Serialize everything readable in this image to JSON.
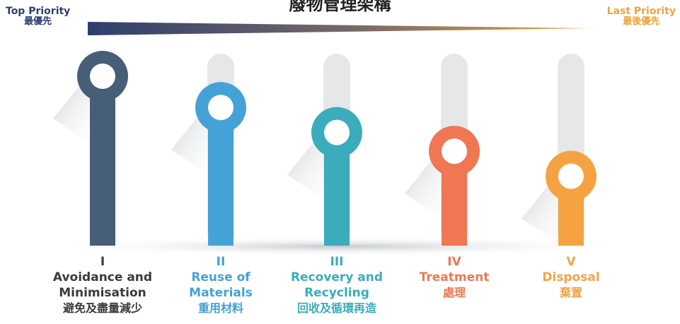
{
  "title": "廢物管理架構",
  "priority": {
    "top_en": "Top Priority",
    "top_zh": "最優先",
    "last_en": "Last Priority",
    "last_zh": "最後優先"
  },
  "colors": {
    "top": "#2e3f6e",
    "last": "#f0a23c",
    "track": "#e6e7e9"
  },
  "items": [
    {
      "numeral": "I",
      "name": "Avoidance and\nMinimisation",
      "zh": "避免及盡量減少",
      "color": "#475e77",
      "level": 1.0
    },
    {
      "numeral": "II",
      "name": "Reuse of\nMaterials",
      "zh": "重用材料",
      "color": "#44a2d6",
      "level": 0.75
    },
    {
      "numeral": "III",
      "name": "Recovery and\nRecycling",
      "zh": "回收及循環再造",
      "color": "#3bacbb",
      "level": 0.55
    },
    {
      "numeral": "IV",
      "name": "Treatment",
      "zh": "處理",
      "color": "#ef7754",
      "level": 0.4
    },
    {
      "numeral": "V",
      "name": "Disposal",
      "zh": "棄置",
      "color": "#f5a342",
      "level": 0.2
    }
  ]
}
